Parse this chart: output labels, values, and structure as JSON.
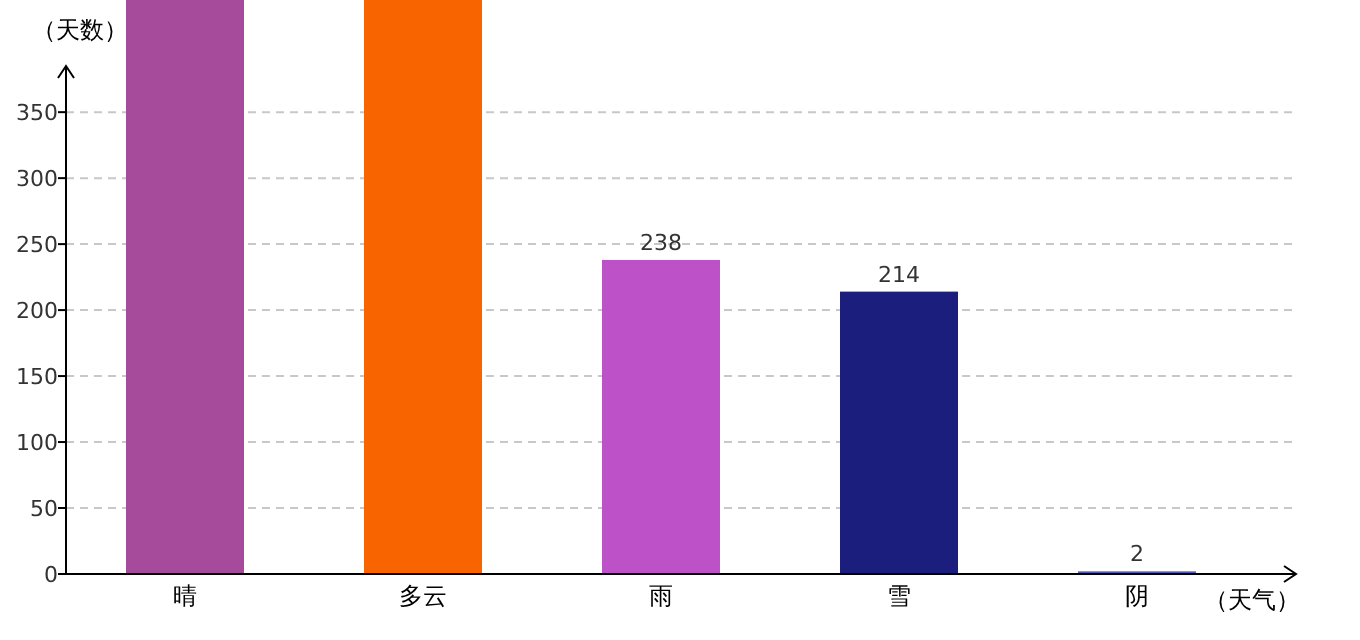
{
  "chart_data": {
    "type": "bar",
    "ylabel": "（天数）",
    "xlabel": "（天气）",
    "categories": [
      "晴",
      "多云",
      "雨",
      "雪",
      "阴"
    ],
    "values": [
      435,
      435,
      238,
      214,
      2
    ],
    "colors": [
      "#a64a9b",
      "#f86400",
      "#bd52c8",
      "#1b1e7c",
      "#4e5bb8"
    ],
    "value_labels": [
      null,
      null,
      "238",
      "214",
      "2"
    ],
    "ylim": [
      0,
      435
    ],
    "yticks": [
      0,
      50,
      100,
      150,
      200,
      250,
      300,
      350
    ],
    "grid": "y"
  }
}
